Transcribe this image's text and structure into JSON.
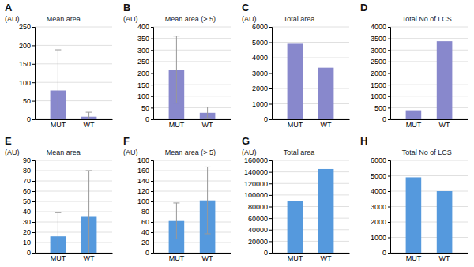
{
  "chart_data": [
    {
      "type": "bar",
      "title": "Mean area",
      "y_label": "(AU)",
      "annotations": [
        "A"
      ],
      "categories": [
        "MUT",
        "WT"
      ],
      "values": [
        78,
        7
      ],
      "errors": [
        110,
        12
      ],
      "color": "#8888cc",
      "ylim": [
        0,
        250
      ],
      "yticks": [
        0,
        50,
        100,
        150,
        200,
        250
      ],
      "grid": true
    },
    {
      "type": "bar",
      "title": "Mean area (> 5)",
      "y_label": "(AU)",
      "annotations": [
        "B"
      ],
      "categories": [
        "MUT",
        "WT"
      ],
      "values": [
        215,
        28
      ],
      "errors": [
        145,
        25
      ],
      "color": "#8888cc",
      "ylim": [
        0,
        400
      ],
      "yticks": [
        0,
        50,
        100,
        150,
        200,
        250,
        300,
        350,
        400
      ],
      "grid": true
    },
    {
      "type": "bar",
      "title": "Total area",
      "y_label": "(AU)",
      "annotations": [
        "C"
      ],
      "categories": [
        "MUT",
        "WT"
      ],
      "values": [
        4900,
        3350
      ],
      "color": "#8888cc",
      "ylim": [
        0,
        6000
      ],
      "yticks": [
        0,
        1000,
        2000,
        3000,
        4000,
        5000,
        6000
      ],
      "grid": true
    },
    {
      "type": "bar",
      "title": "Total No of LCS",
      "annotations": [
        "D"
      ],
      "categories": [
        "MUT",
        "WT"
      ],
      "values": [
        390,
        3380
      ],
      "color": "#8888cc",
      "ylim": [
        0,
        4000
      ],
      "yticks": [
        0,
        500,
        1000,
        1500,
        2000,
        2500,
        3000,
        3500,
        4000
      ],
      "grid": true
    },
    {
      "type": "bar",
      "title": "Mean area",
      "y_label": "(AU)",
      "annotations": [
        "E"
      ],
      "categories": [
        "MUT",
        "WT"
      ],
      "values": [
        16,
        35
      ],
      "errors": [
        23,
        45
      ],
      "color": "#5599dd",
      "ylim": [
        0,
        90
      ],
      "yticks": [
        0,
        10,
        20,
        30,
        40,
        50,
        60,
        70,
        80,
        90
      ],
      "grid": true
    },
    {
      "type": "bar",
      "title": "Mean area (> 5)",
      "y_label": "(AU)",
      "annotations": [
        "F"
      ],
      "categories": [
        "MUT",
        "WT"
      ],
      "values": [
        62,
        102
      ],
      "errors": [
        35,
        65
      ],
      "color": "#5599dd",
      "ylim": [
        0,
        180
      ],
      "yticks": [
        0,
        20,
        40,
        60,
        80,
        100,
        120,
        140,
        160,
        180
      ],
      "grid": true
    },
    {
      "type": "bar",
      "title": "Total area",
      "y_label": "(AU)",
      "annotations": [
        "G"
      ],
      "categories": [
        "MUT",
        "WT"
      ],
      "values": [
        90000,
        145000
      ],
      "color": "#5599dd",
      "ylim": [
        0,
        160000
      ],
      "yticks": [
        0,
        20000,
        40000,
        60000,
        80000,
        100000,
        120000,
        140000,
        160000
      ],
      "grid": true
    },
    {
      "type": "bar",
      "title": "Total No of LCS",
      "annotations": [
        "H"
      ],
      "categories": [
        "MUT",
        "WT"
      ],
      "values": [
        4900,
        4000
      ],
      "color": "#5599dd",
      "ylim": [
        0,
        6000
      ],
      "yticks": [
        0,
        1000,
        2000,
        3000,
        4000,
        5000,
        6000
      ],
      "grid": true
    }
  ]
}
